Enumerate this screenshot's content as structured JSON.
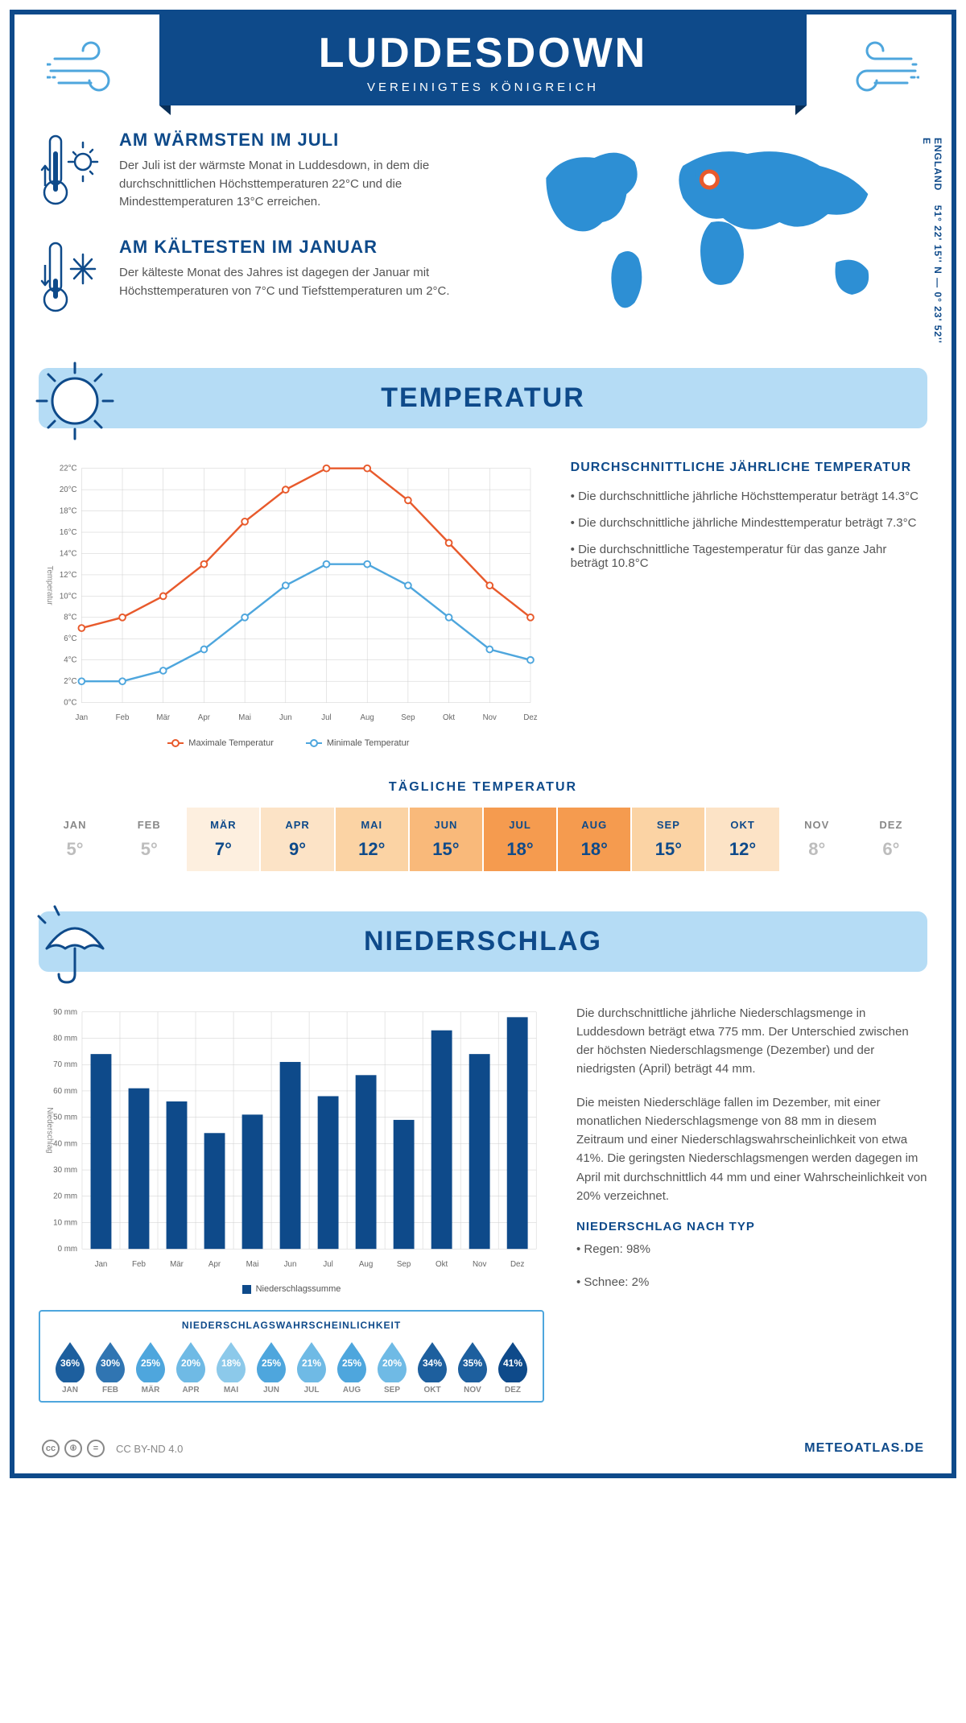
{
  "header": {
    "title": "LUDDESDOWN",
    "subtitle": "VEREINIGTES KÖNIGREICH"
  },
  "coords": {
    "lat": "51° 22' 15'' N",
    "lon": "0° 23' 52'' E",
    "region": "ENGLAND"
  },
  "warmest": {
    "title": "AM WÄRMSTEN IM JULI",
    "text": "Der Juli ist der wärmste Monat in Luddesdown, in dem die durchschnittlichen Höchsttemperaturen 22°C und die Mindesttemperaturen 13°C erreichen."
  },
  "coldest": {
    "title": "AM KÄLTESTEN IM JANUAR",
    "text": "Der kälteste Monat des Jahres ist dagegen der Januar mit Höchsttemperaturen von 7°C und Tiefsttemperaturen um 2°C."
  },
  "temp_section": {
    "title": "TEMPERATUR"
  },
  "temp_chart": {
    "type": "line",
    "months": [
      "Jan",
      "Feb",
      "Mär",
      "Apr",
      "Mai",
      "Jun",
      "Jul",
      "Aug",
      "Sep",
      "Okt",
      "Nov",
      "Dez"
    ],
    "max_series": {
      "label": "Maximale Temperatur",
      "color": "#e85a2c",
      "values": [
        7,
        8,
        10,
        13,
        17,
        20,
        22,
        22,
        19,
        15,
        11,
        8
      ]
    },
    "min_series": {
      "label": "Minimale Temperatur",
      "color": "#4ea6dd",
      "values": [
        2,
        2,
        3,
        5,
        8,
        11,
        13,
        13,
        11,
        8,
        5,
        4
      ]
    },
    "ylim": [
      0,
      22
    ],
    "ytick_step": 2,
    "yunit": "°C",
    "ylabel": "Temperatur",
    "grid_color": "#cccccc",
    "background": "#ffffff",
    "line_width": 2.5,
    "marker": "circle",
    "marker_size": 4
  },
  "temp_text": {
    "heading": "DURCHSCHNITTLICHE JÄHRLICHE TEMPERATUR",
    "b1": "• Die durchschnittliche jährliche Höchsttemperatur beträgt 14.3°C",
    "b2": "• Die durchschnittliche jährliche Mindesttemperatur beträgt 7.3°C",
    "b3": "• Die durchschnittliche Tagestemperatur für das ganze Jahr beträgt 10.8°C"
  },
  "daily": {
    "title": "TÄGLICHE TEMPERATUR",
    "months": [
      "JAN",
      "FEB",
      "MÄR",
      "APR",
      "MAI",
      "JUN",
      "JUL",
      "AUG",
      "SEP",
      "OKT",
      "NOV",
      "DEZ"
    ],
    "values": [
      "5°",
      "5°",
      "7°",
      "9°",
      "12°",
      "15°",
      "18°",
      "18°",
      "15°",
      "12°",
      "8°",
      "6°"
    ],
    "bg_colors": [
      "#ffffff",
      "#ffffff",
      "#fdefdf",
      "#fce3c6",
      "#fbd3a4",
      "#f9b97a",
      "#f59b4f",
      "#f59b4f",
      "#fbd3a4",
      "#fce3c6",
      "#ffffff",
      "#ffffff"
    ],
    "text_colors": [
      "#bdbdbd",
      "#bdbdbd",
      "#0e4a8a",
      "#0e4a8a",
      "#0e4a8a",
      "#0e4a8a",
      "#0e4a8a",
      "#0e4a8a",
      "#0e4a8a",
      "#0e4a8a",
      "#bdbdbd",
      "#bdbdbd"
    ]
  },
  "precip_section": {
    "title": "NIEDERSCHLAG"
  },
  "precip_chart": {
    "type": "bar",
    "months": [
      "Jan",
      "Feb",
      "Mär",
      "Apr",
      "Mai",
      "Jun",
      "Jul",
      "Aug",
      "Sep",
      "Okt",
      "Nov",
      "Dez"
    ],
    "values": [
      74,
      61,
      56,
      44,
      51,
      71,
      58,
      66,
      49,
      83,
      74,
      88
    ],
    "bar_color": "#0e4a8a",
    "ylim": [
      0,
      90
    ],
    "ytick_step": 10,
    "yunit": " mm",
    "ylabel": "Niederschlag",
    "legend": "Niederschlagssumme",
    "grid_color": "#cccccc",
    "bar_width": 0.55
  },
  "precip_text": {
    "p1": "Die durchschnittliche jährliche Niederschlagsmenge in Luddesdown beträgt etwa 775 mm. Der Unterschied zwischen der höchsten Niederschlagsmenge (Dezember) und der niedrigsten (April) beträgt 44 mm.",
    "p2": "Die meisten Niederschläge fallen im Dezember, mit einer monatlichen Niederschlagsmenge von 88 mm in diesem Zeitraum und einer Niederschlagswahrscheinlichkeit von etwa 41%. Die geringsten Niederschlagsmengen werden dagegen im April mit durchschnittlich 44 mm und einer Wahrscheinlichkeit von 20% verzeichnet.",
    "type_heading": "NIEDERSCHLAG NACH TYP",
    "type1": "• Regen: 98%",
    "type2": "• Schnee: 2%"
  },
  "prob": {
    "title": "NIEDERSCHLAGSWAHRSCHEINLICHKEIT",
    "months": [
      "JAN",
      "FEB",
      "MÄR",
      "APR",
      "MAI",
      "JUN",
      "JUL",
      "AUG",
      "SEP",
      "OKT",
      "NOV",
      "DEZ"
    ],
    "values": [
      "36%",
      "30%",
      "25%",
      "20%",
      "18%",
      "25%",
      "21%",
      "25%",
      "20%",
      "34%",
      "35%",
      "41%"
    ],
    "colors": [
      "#1d5f9e",
      "#3075b2",
      "#4ea6dd",
      "#6fbae5",
      "#8cc9ea",
      "#4ea6dd",
      "#6fbae5",
      "#4ea6dd",
      "#6fbae5",
      "#1d5f9e",
      "#1d5f9e",
      "#0e4a8a"
    ]
  },
  "footer": {
    "license": "CC BY-ND 4.0",
    "site": "METEOATLAS.DE"
  }
}
